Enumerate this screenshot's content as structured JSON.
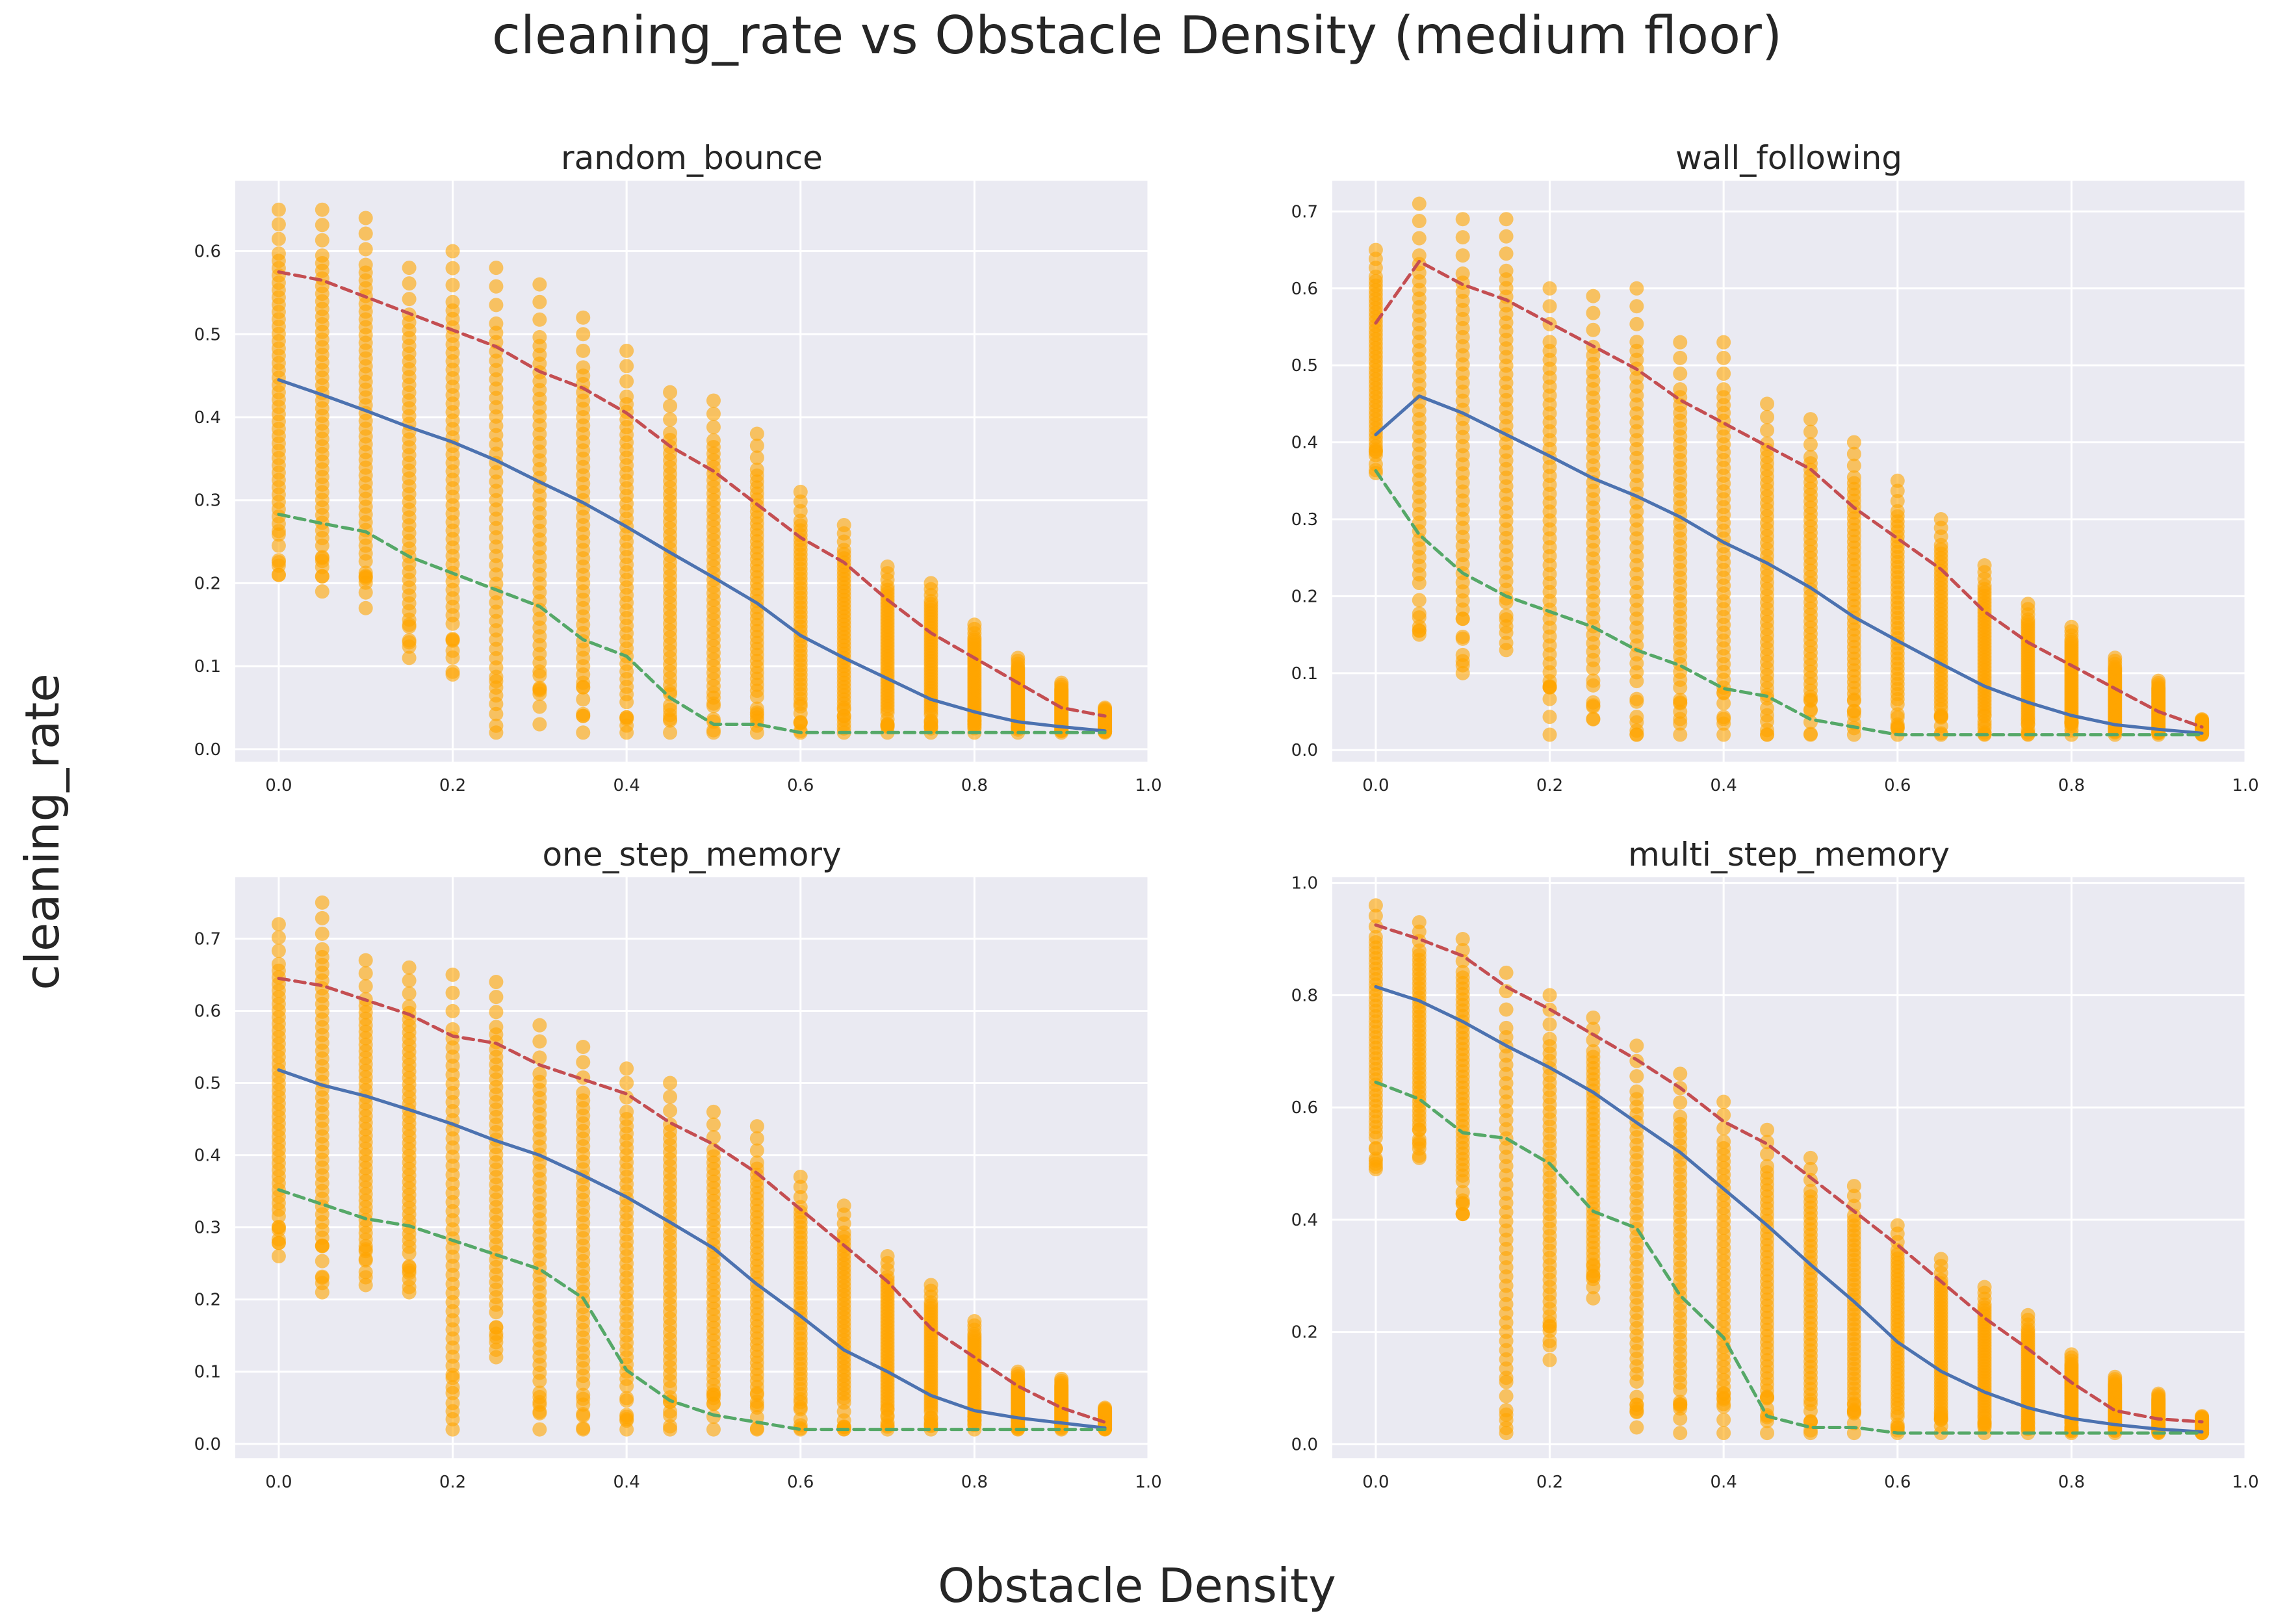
{
  "figure": {
    "title": "cleaning_rate vs Obstacle Density (medium floor)",
    "xlabel": "Obstacle Density",
    "ylabel": "cleaning_rate"
  },
  "colors": {
    "background": "#eaeaf2",
    "grid": "#ffffff",
    "points": "#ffa500",
    "mean_line": "#4c72b0",
    "upper_line": "#c44e52",
    "lower_line": "#55a868"
  },
  "chart_data": [
    {
      "type": "scatter",
      "title": "random_bounce",
      "grid": true,
      "xlim": [
        -0.05,
        1.0
      ],
      "ylim": [
        -0.015,
        0.685
      ],
      "xticks": [
        0.0,
        0.2,
        0.4,
        0.6,
        0.8,
        1.0
      ],
      "yticks": [
        0.0,
        0.1,
        0.2,
        0.3,
        0.4,
        0.5,
        0.6
      ],
      "x": [
        0.0,
        0.05,
        0.1,
        0.15,
        0.2,
        0.25,
        0.3,
        0.35,
        0.4,
        0.45,
        0.5,
        0.55,
        0.6,
        0.65,
        0.7,
        0.75,
        0.8,
        0.85,
        0.9,
        0.95
      ],
      "point_min": [
        0.21,
        0.19,
        0.17,
        0.11,
        0.09,
        0.02,
        0.03,
        0.02,
        0.02,
        0.02,
        0.02,
        0.02,
        0.02,
        0.02,
        0.02,
        0.02,
        0.02,
        0.02,
        0.02,
        0.02
      ],
      "point_max": [
        0.65,
        0.65,
        0.64,
        0.58,
        0.6,
        0.58,
        0.56,
        0.52,
        0.48,
        0.43,
        0.42,
        0.38,
        0.31,
        0.27,
        0.22,
        0.2,
        0.15,
        0.11,
        0.08,
        0.05
      ],
      "series": [
        {
          "values": [
            0.445,
            0.427,
            0.408,
            0.388,
            0.37,
            0.348,
            0.322,
            0.297,
            0.268,
            0.237,
            0.207,
            0.176,
            0.137,
            0.11,
            0.085,
            0.06,
            0.045,
            0.033,
            0.027,
            0.022
          ]
        },
        {
          "values": [
            0.575,
            0.565,
            0.545,
            0.525,
            0.505,
            0.485,
            0.455,
            0.435,
            0.405,
            0.365,
            0.335,
            0.295,
            0.255,
            0.225,
            0.18,
            0.14,
            0.11,
            0.08,
            0.05,
            0.04
          ]
        },
        {
          "values": [
            0.283,
            0.272,
            0.262,
            0.232,
            0.212,
            0.192,
            0.172,
            0.132,
            0.112,
            0.062,
            0.03,
            0.03,
            0.02,
            0.02,
            0.02,
            0.02,
            0.02,
            0.02,
            0.02,
            0.02
          ]
        }
      ]
    },
    {
      "type": "scatter",
      "title": "wall_following",
      "grid": true,
      "xlim": [
        -0.05,
        1.0
      ],
      "ylim": [
        -0.015,
        0.74
      ],
      "xticks": [
        0.0,
        0.2,
        0.4,
        0.6,
        0.8,
        1.0
      ],
      "yticks": [
        0.0,
        0.1,
        0.2,
        0.3,
        0.4,
        0.5,
        0.6,
        0.7
      ],
      "x": [
        0.0,
        0.05,
        0.1,
        0.15,
        0.2,
        0.25,
        0.3,
        0.35,
        0.4,
        0.45,
        0.5,
        0.55,
        0.6,
        0.65,
        0.7,
        0.75,
        0.8,
        0.85,
        0.9,
        0.95
      ],
      "point_min": [
        0.36,
        0.15,
        0.1,
        0.13,
        0.02,
        0.04,
        0.02,
        0.02,
        0.02,
        0.02,
        0.02,
        0.02,
        0.02,
        0.02,
        0.02,
        0.02,
        0.02,
        0.02,
        0.02,
        0.02
      ],
      "point_max": [
        0.65,
        0.71,
        0.69,
        0.69,
        0.6,
        0.59,
        0.6,
        0.53,
        0.53,
        0.45,
        0.43,
        0.4,
        0.35,
        0.3,
        0.24,
        0.19,
        0.16,
        0.12,
        0.09,
        0.04
      ],
      "series": [
        {
          "values": [
            0.41,
            0.46,
            0.438,
            0.41,
            0.382,
            0.353,
            0.33,
            0.303,
            0.27,
            0.243,
            0.211,
            0.173,
            0.142,
            0.112,
            0.083,
            0.062,
            0.045,
            0.033,
            0.027,
            0.022
          ]
        },
        {
          "values": [
            0.555,
            0.635,
            0.605,
            0.585,
            0.555,
            0.525,
            0.495,
            0.455,
            0.425,
            0.395,
            0.365,
            0.315,
            0.275,
            0.235,
            0.18,
            0.14,
            0.11,
            0.08,
            0.05,
            0.03
          ]
        },
        {
          "values": [
            0.363,
            0.28,
            0.23,
            0.2,
            0.18,
            0.16,
            0.13,
            0.11,
            0.08,
            0.07,
            0.04,
            0.03,
            0.02,
            0.02,
            0.02,
            0.02,
            0.02,
            0.02,
            0.02,
            0.02
          ]
        }
      ]
    },
    {
      "type": "scatter",
      "title": "one_step_memory",
      "grid": true,
      "xlim": [
        -0.05,
        1.0
      ],
      "ylim": [
        -0.02,
        0.785
      ],
      "xticks": [
        0.0,
        0.2,
        0.4,
        0.6,
        0.8,
        1.0
      ],
      "yticks": [
        0.0,
        0.1,
        0.2,
        0.3,
        0.4,
        0.5,
        0.6,
        0.7
      ],
      "x": [
        0.0,
        0.05,
        0.1,
        0.15,
        0.2,
        0.25,
        0.3,
        0.35,
        0.4,
        0.45,
        0.5,
        0.55,
        0.6,
        0.65,
        0.7,
        0.75,
        0.8,
        0.85,
        0.9,
        0.95
      ],
      "point_min": [
        0.26,
        0.21,
        0.22,
        0.21,
        0.02,
        0.12,
        0.02,
        0.02,
        0.02,
        0.02,
        0.02,
        0.02,
        0.02,
        0.02,
        0.02,
        0.02,
        0.02,
        0.02,
        0.02,
        0.02
      ],
      "point_max": [
        0.72,
        0.75,
        0.67,
        0.66,
        0.65,
        0.64,
        0.58,
        0.55,
        0.52,
        0.5,
        0.46,
        0.44,
        0.37,
        0.33,
        0.26,
        0.22,
        0.17,
        0.1,
        0.09,
        0.05
      ],
      "series": [
        {
          "values": [
            0.518,
            0.497,
            0.482,
            0.463,
            0.443,
            0.42,
            0.4,
            0.372,
            0.342,
            0.307,
            0.271,
            0.221,
            0.177,
            0.13,
            0.1,
            0.067,
            0.046,
            0.036,
            0.029,
            0.022
          ]
        },
        {
          "values": [
            0.645,
            0.635,
            0.615,
            0.595,
            0.565,
            0.555,
            0.525,
            0.505,
            0.485,
            0.445,
            0.415,
            0.375,
            0.325,
            0.275,
            0.225,
            0.16,
            0.12,
            0.08,
            0.05,
            0.03
          ]
        },
        {
          "values": [
            0.352,
            0.332,
            0.312,
            0.302,
            0.282,
            0.262,
            0.242,
            0.202,
            0.102,
            0.06,
            0.04,
            0.03,
            0.02,
            0.02,
            0.02,
            0.02,
            0.02,
            0.02,
            0.02,
            0.02
          ]
        }
      ]
    },
    {
      "type": "scatter",
      "title": "multi_step_memory",
      "grid": true,
      "xlim": [
        -0.05,
        1.0
      ],
      "ylim": [
        -0.025,
        1.01
      ],
      "xticks": [
        0.0,
        0.2,
        0.4,
        0.6,
        0.8,
        1.0
      ],
      "yticks": [
        0.0,
        0.2,
        0.4,
        0.6,
        0.8,
        1.0
      ],
      "x": [
        0.0,
        0.05,
        0.1,
        0.15,
        0.2,
        0.25,
        0.3,
        0.35,
        0.4,
        0.45,
        0.5,
        0.55,
        0.6,
        0.65,
        0.7,
        0.75,
        0.8,
        0.85,
        0.9,
        0.95
      ],
      "point_min": [
        0.49,
        0.51,
        0.41,
        0.02,
        0.15,
        0.26,
        0.03,
        0.02,
        0.02,
        0.02,
        0.02,
        0.02,
        0.02,
        0.02,
        0.02,
        0.02,
        0.02,
        0.02,
        0.02,
        0.02
      ],
      "point_max": [
        0.96,
        0.93,
        0.9,
        0.84,
        0.8,
        0.76,
        0.71,
        0.66,
        0.61,
        0.56,
        0.51,
        0.46,
        0.39,
        0.33,
        0.28,
        0.23,
        0.16,
        0.12,
        0.09,
        0.05
      ],
      "series": [
        {
          "values": [
            0.815,
            0.79,
            0.753,
            0.71,
            0.671,
            0.627,
            0.573,
            0.52,
            0.455,
            0.39,
            0.32,
            0.254,
            0.182,
            0.13,
            0.093,
            0.065,
            0.046,
            0.035,
            0.027,
            0.022
          ]
        },
        {
          "values": [
            0.925,
            0.9,
            0.87,
            0.815,
            0.775,
            0.73,
            0.685,
            0.635,
            0.575,
            0.535,
            0.475,
            0.415,
            0.355,
            0.29,
            0.225,
            0.17,
            0.11,
            0.06,
            0.045,
            0.04
          ]
        },
        {
          "values": [
            0.645,
            0.615,
            0.555,
            0.545,
            0.5,
            0.415,
            0.385,
            0.265,
            0.19,
            0.05,
            0.03,
            0.03,
            0.02,
            0.02,
            0.02,
            0.02,
            0.02,
            0.02,
            0.02,
            0.02
          ]
        }
      ]
    }
  ]
}
